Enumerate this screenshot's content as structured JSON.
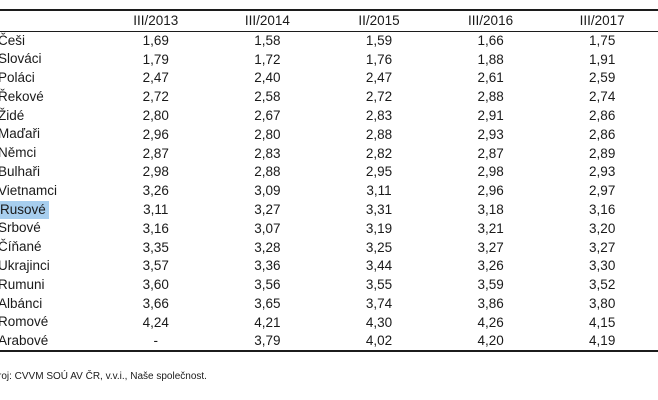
{
  "table": {
    "header": {
      "row_label_cell": "",
      "columns": [
        "III/2013",
        "III/2014",
        "II/2015",
        "III/2016",
        "III/2017"
      ]
    },
    "rows": [
      {
        "label": "Češi",
        "values": [
          "1,69",
          "1,58",
          "1,59",
          "1,66",
          "1,75"
        ],
        "highlighted": false
      },
      {
        "label": "Slováci",
        "values": [
          "1,79",
          "1,72",
          "1,76",
          "1,88",
          "1,91"
        ],
        "highlighted": false
      },
      {
        "label": "Poláci",
        "values": [
          "2,47",
          "2,40",
          "2,47",
          "2,61",
          "2,59"
        ],
        "highlighted": false
      },
      {
        "label": "Řekové",
        "values": [
          "2,72",
          "2,58",
          "2,72",
          "2,88",
          "2,74"
        ],
        "highlighted": false
      },
      {
        "label": "Židé",
        "values": [
          "2,80",
          "2,67",
          "2,83",
          "2,91",
          "2,86"
        ],
        "highlighted": false
      },
      {
        "label": "Maďaři",
        "values": [
          "2,96",
          "2,80",
          "2,88",
          "2,93",
          "2,86"
        ],
        "highlighted": false
      },
      {
        "label": "Němci",
        "values": [
          "2,87",
          "2,83",
          "2,82",
          "2,87",
          "2,89"
        ],
        "highlighted": false
      },
      {
        "label": "Bulhaři",
        "values": [
          "2,98",
          "2,88",
          "2,95",
          "2,98",
          "2,93"
        ],
        "highlighted": false
      },
      {
        "label": "Vietnamci",
        "values": [
          "3,26",
          "3,09",
          "3,11",
          "2,96",
          "2,97"
        ],
        "highlighted": false
      },
      {
        "label": "Rusové",
        "values": [
          "3,11",
          "3,27",
          "3,31",
          "3,18",
          "3,16"
        ],
        "highlighted": true
      },
      {
        "label": "Srbové",
        "values": [
          "3,16",
          "3,07",
          "3,19",
          "3,21",
          "3,20"
        ],
        "highlighted": false
      },
      {
        "label": "Číňané",
        "values": [
          "3,35",
          "3,28",
          "3,25",
          "3,27",
          "3,27"
        ],
        "highlighted": false
      },
      {
        "label": "Ukrajinci",
        "values": [
          "3,57",
          "3,36",
          "3,44",
          "3,26",
          "3,30"
        ],
        "highlighted": false
      },
      {
        "label": "Rumuni",
        "values": [
          "3,60",
          "3,56",
          "3,55",
          "3,59",
          "3,52"
        ],
        "highlighted": false
      },
      {
        "label": "Albánci",
        "values": [
          "3,66",
          "3,65",
          "3,74",
          "3,86",
          "3,80"
        ],
        "highlighted": false
      },
      {
        "label": "Romové",
        "values": [
          "4,24",
          "4,21",
          "4,30",
          "4,26",
          "4,15"
        ],
        "highlighted": false
      },
      {
        "label": "Arabové",
        "values": [
          "-",
          "3,79",
          "4,02",
          "4,20",
          "4,19"
        ],
        "highlighted": false
      }
    ]
  },
  "footer": {
    "source_note": "roj: CVVM SOÚ AV ČR, v.v.i., Naše společnost."
  },
  "colors": {
    "highlight": "#a7ceee",
    "text": "#1a1a1a",
    "line": "#1c1c1c"
  }
}
